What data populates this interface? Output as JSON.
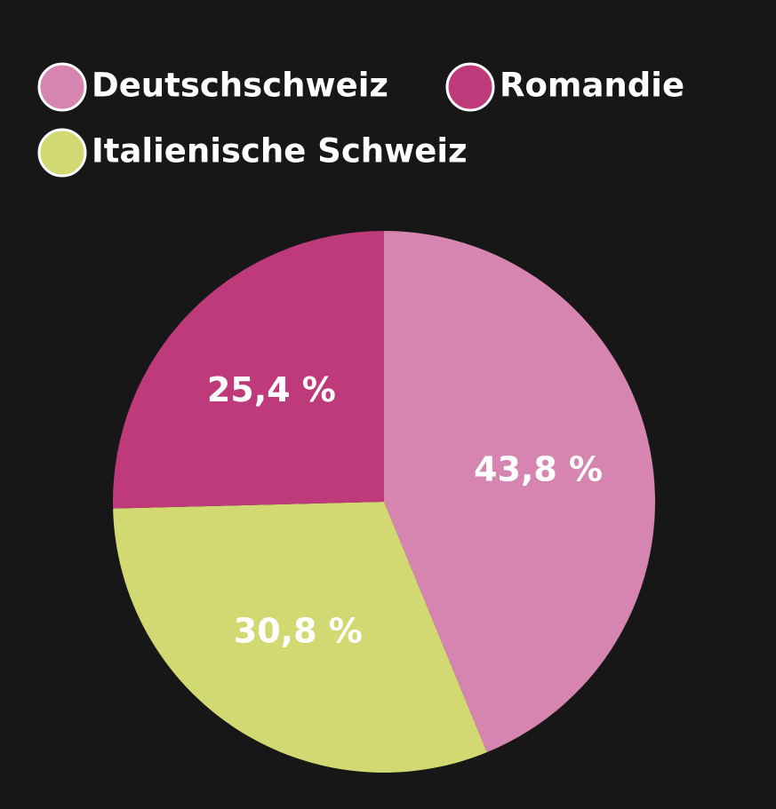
{
  "chart_data": {
    "type": "pie",
    "categories": [
      "Deutschschweiz",
      "Italienische Schweiz",
      "Romandie"
    ],
    "values": [
      43.8,
      30.8,
      25.4
    ],
    "value_labels": [
      "43,8 %",
      "30,8 %",
      "25,4 %"
    ],
    "colors": [
      "#d684b0",
      "#d2d972",
      "#bf3a7a"
    ],
    "legend": "top-left"
  }
}
